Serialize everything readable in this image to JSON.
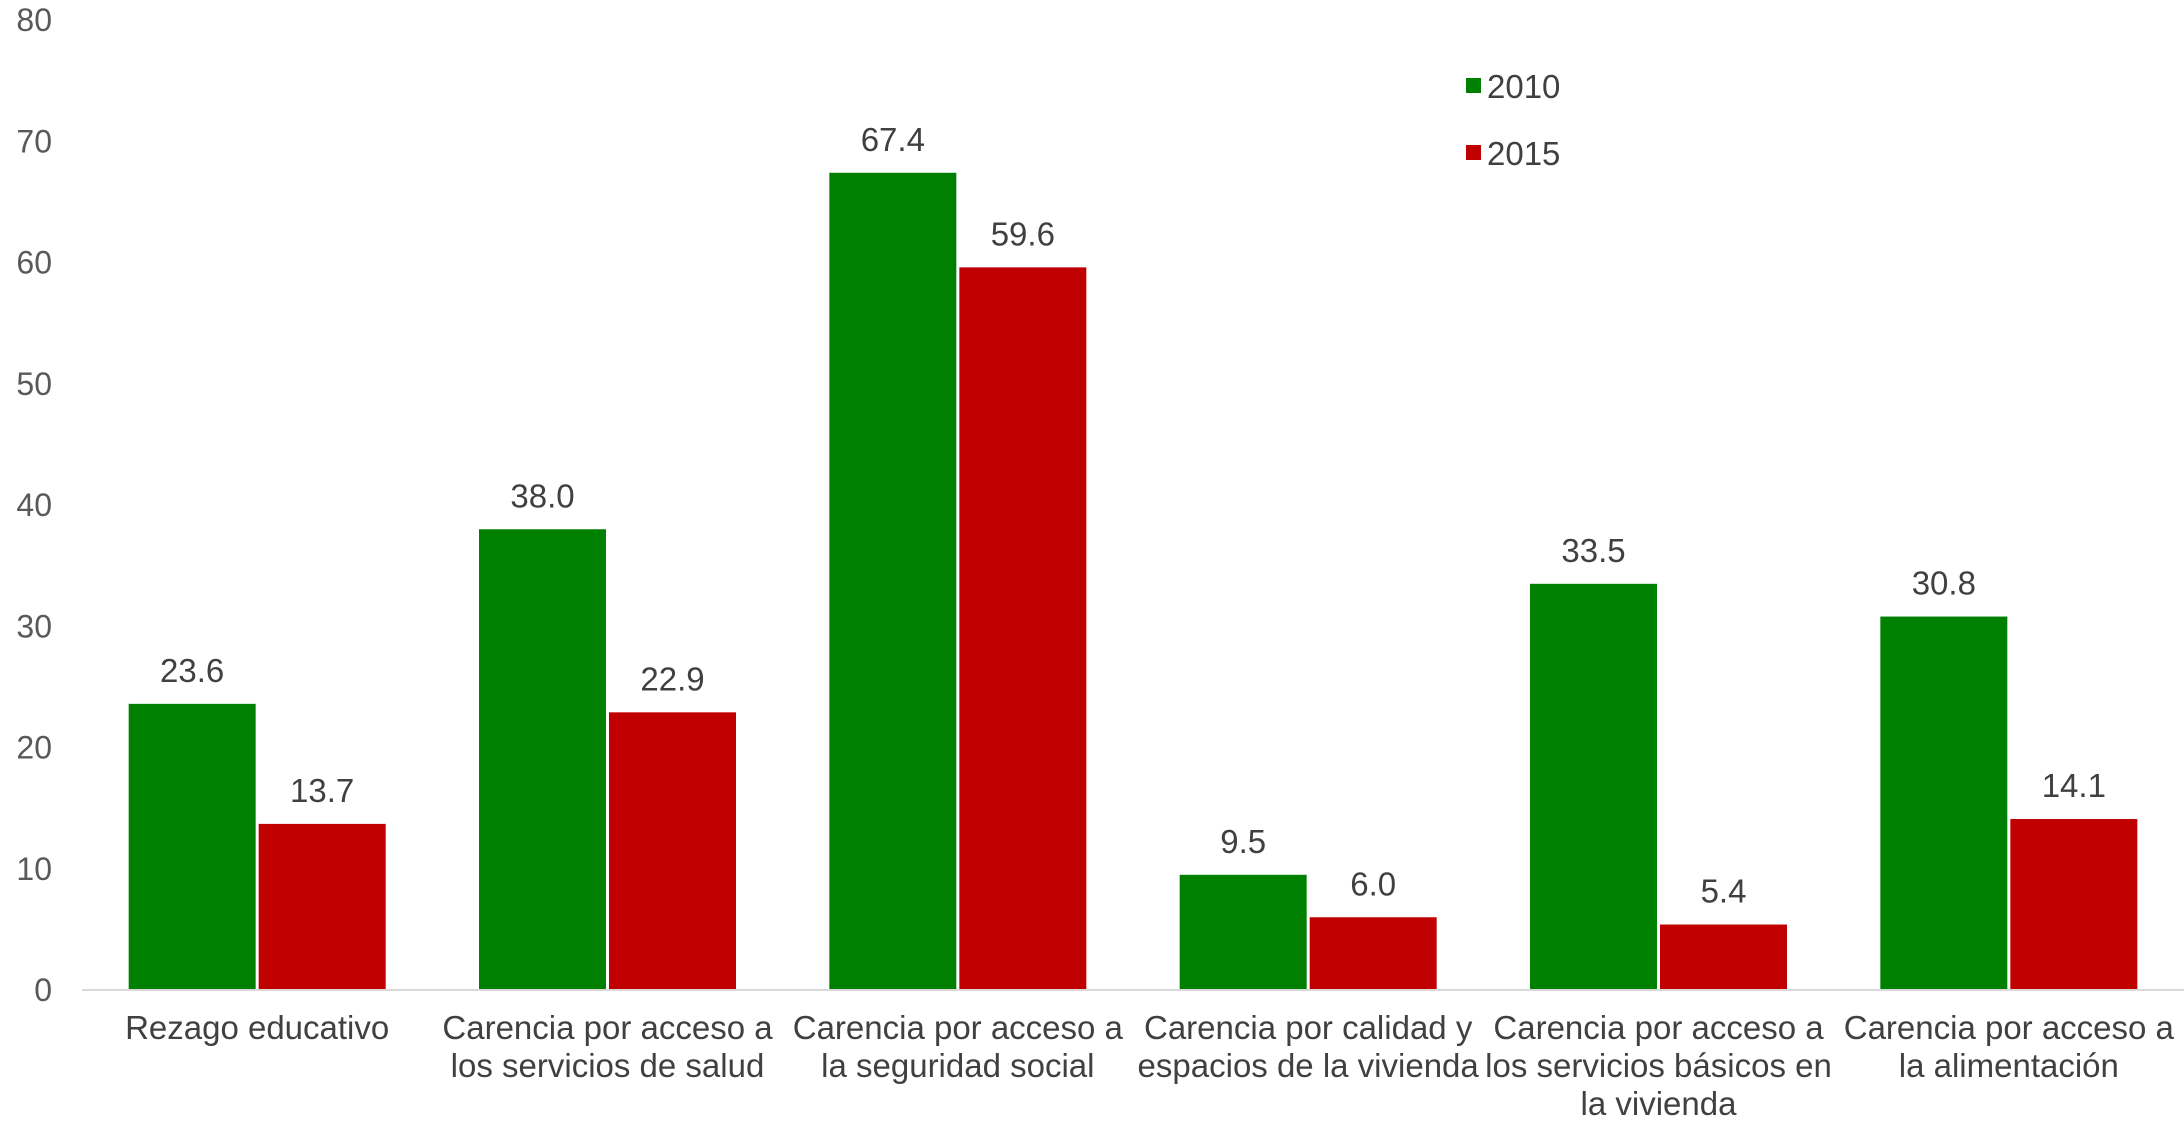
{
  "chart_data": {
    "type": "bar",
    "categories": [
      [
        "Rezago educativo"
      ],
      [
        "Carencia por acceso a",
        "los servicios de salud"
      ],
      [
        "Carencia por acceso a",
        "la seguridad social"
      ],
      [
        "Carencia por calidad y",
        "espacios de la vivienda"
      ],
      [
        "Carencia por acceso a",
        "los servicios básicos en",
        "la vivienda"
      ],
      [
        "Carencia por acceso a",
        "la alimentación"
      ]
    ],
    "series": [
      {
        "name": "2010",
        "color": "#008000",
        "values": [
          23.6,
          38.0,
          67.4,
          9.5,
          33.5,
          30.8
        ],
        "labels": [
          "23.6",
          "38.0",
          "67.4",
          "9.5",
          "33.5",
          "30.8"
        ]
      },
      {
        "name": "2015",
        "color": "#C00000",
        "values": [
          13.7,
          22.9,
          59.6,
          6.0,
          5.4,
          14.1
        ],
        "labels": [
          "13.7",
          "22.9",
          "59.6",
          "6.0",
          "5.4",
          "14.1"
        ]
      }
    ],
    "ylim": [
      0,
      80
    ],
    "yticks": [
      0,
      10,
      20,
      30,
      40,
      50,
      60,
      70,
      80
    ],
    "grid": false,
    "legend_position": "top-right",
    "title": "",
    "xlabel": "",
    "ylabel": ""
  }
}
